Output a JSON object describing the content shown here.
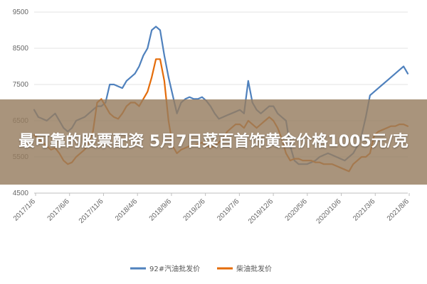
{
  "headline": "最可靠的股票配资 5月7日菜百首饰黄金价格1005元/克",
  "chart_data": {
    "type": "line",
    "xlabel": "",
    "ylabel": "",
    "ylim": [
      4500,
      9500
    ],
    "yticks": [
      4500,
      5500,
      6500,
      7500,
      8500,
      9500
    ],
    "x_tick_labels": [
      "2017/1/6",
      "2017/6/6",
      "2017/11/6",
      "2018/4/6",
      "2018/9/6",
      "2019/2/6",
      "2019/7/6",
      "2019/12/6",
      "2020/5/6",
      "2020/10/6",
      "2021/3/6",
      "2021/8/6"
    ],
    "grid": "horizontal",
    "legend_position": "bottom",
    "series": [
      {
        "name": "92#汽油批发价",
        "color": "#4f81bd",
        "values": [
          6800,
          6600,
          6550,
          6500,
          6600,
          6700,
          6500,
          6300,
          6200,
          6300,
          6500,
          6550,
          6600,
          6700,
          6800,
          6900,
          6900,
          7000,
          7500,
          7500,
          7450,
          7400,
          7600,
          7700,
          7800,
          8000,
          8300,
          8500,
          9000,
          9100,
          9000,
          8300,
          7700,
          7200,
          6700,
          7000,
          7100,
          7150,
          7100,
          7100,
          7150,
          7050,
          6900,
          6700,
          6550,
          6600,
          6650,
          6700,
          6750,
          6800,
          6700,
          7600,
          7000,
          6800,
          6700,
          6800,
          6900,
          6900,
          6700,
          6600,
          6500,
          5800,
          5400,
          5300,
          5300,
          5300,
          5350,
          5400,
          5500,
          5550,
          5600,
          5550,
          5500,
          5450,
          5400,
          5500,
          5600,
          5800,
          6100,
          6600,
          7200,
          7300,
          7400,
          7500,
          7600,
          7700,
          7800,
          7900,
          8000,
          7800
        ],
        "x_index": [
          0,
          1,
          2,
          3,
          4,
          5,
          6,
          7,
          8,
          9,
          10,
          11,
          12,
          13,
          14,
          15,
          16,
          17,
          18,
          19,
          20,
          21,
          22,
          23,
          24,
          25,
          26,
          27,
          28,
          29,
          30,
          31,
          32,
          33,
          34,
          35,
          36,
          37,
          38,
          39,
          40,
          41,
          42,
          43,
          44,
          45,
          46,
          47,
          48,
          49,
          50,
          51,
          52,
          53,
          54,
          55,
          56,
          57,
          58,
          59,
          60,
          61,
          62,
          63,
          64,
          65,
          66,
          67,
          68,
          69,
          70,
          71,
          72,
          73,
          74,
          75,
          76,
          77,
          78,
          79,
          80,
          81,
          82,
          83,
          84,
          85,
          86,
          87,
          88,
          89
        ]
      },
      {
        "name": "柴油批发价",
        "color": "#e46c0a",
        "values": [
          6100,
          6000,
          5900,
          5800,
          5700,
          5750,
          5600,
          5400,
          5300,
          5350,
          5500,
          5600,
          5700,
          5900,
          6200,
          7000,
          7100,
          6900,
          6700,
          6600,
          6550,
          6700,
          6900,
          7000,
          7000,
          6900,
          7100,
          7300,
          7700,
          8200,
          8200,
          7600,
          6500,
          5800,
          5600,
          5700,
          5750,
          5800,
          5800,
          5850,
          5900,
          5800,
          5750,
          5800,
          5900,
          6000,
          6200,
          6300,
          6400,
          6400,
          6300,
          6500,
          6400,
          6300,
          6400,
          6500,
          6600,
          6500,
          6300,
          6000,
          5600,
          5400,
          5450,
          5450,
          5400,
          5400,
          5400,
          5350,
          5350,
          5300,
          5300,
          5300,
          5250,
          5200,
          5150,
          5100,
          5300,
          5400,
          5500,
          5500,
          5600,
          6100,
          6200,
          6250,
          6300,
          6350,
          6350,
          6400,
          6400,
          6350
        ],
        "x_index": [
          0,
          1,
          2,
          3,
          4,
          5,
          6,
          7,
          8,
          9,
          10,
          11,
          12,
          13,
          14,
          15,
          16,
          17,
          18,
          19,
          20,
          21,
          22,
          23,
          24,
          25,
          26,
          27,
          28,
          29,
          30,
          31,
          32,
          33,
          34,
          35,
          36,
          37,
          38,
          39,
          40,
          41,
          42,
          43,
          44,
          45,
          46,
          47,
          48,
          49,
          50,
          51,
          52,
          53,
          54,
          55,
          56,
          57,
          58,
          59,
          60,
          61,
          62,
          63,
          64,
          65,
          66,
          67,
          68,
          69,
          70,
          71,
          72,
          73,
          74,
          75,
          76,
          77,
          78,
          79,
          80,
          81,
          82,
          83,
          84,
          85,
          86,
          87,
          88,
          89
        ]
      }
    ]
  }
}
